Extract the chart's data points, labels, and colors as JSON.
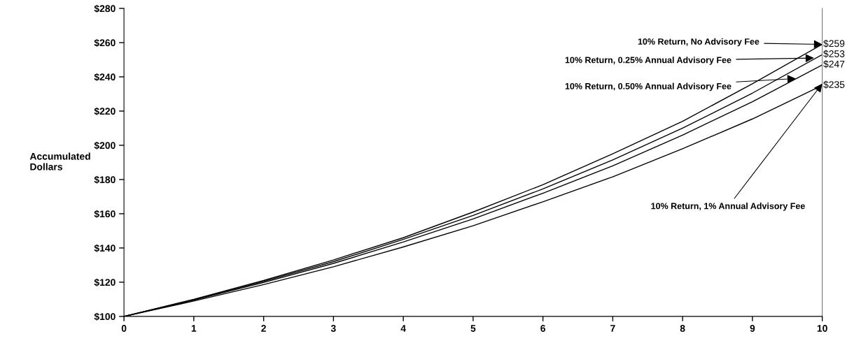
{
  "chart_data": {
    "type": "line",
    "ylabel": "Accumulated\nDollars",
    "x": [
      0,
      1,
      2,
      3,
      4,
      5,
      6,
      7,
      8,
      9,
      10
    ],
    "series": [
      {
        "color": "#000000",
        "values": [
          100,
          110,
          121,
          133,
          146,
          161,
          177,
          195,
          214,
          236,
          259
        ],
        "value_labels": [
          null,
          null,
          null,
          null,
          null,
          null,
          null,
          null,
          null,
          null,
          "$259"
        ]
      },
      {
        "color": "#000000",
        "values": [
          100,
          109.7,
          120.4,
          132,
          145,
          159,
          174.5,
          191.5,
          210,
          230.5,
          253
        ],
        "value_labels": [
          null,
          null,
          null,
          null,
          null,
          null,
          null,
          null,
          null,
          null,
          "$253"
        ]
      },
      {
        "color": "#000000",
        "values": [
          100,
          109.5,
          119.8,
          131,
          143.5,
          157,
          172,
          188,
          206,
          225.5,
          247
        ],
        "value_labels": [
          null,
          null,
          null,
          null,
          null,
          null,
          null,
          null,
          null,
          null,
          "$247"
        ]
      },
      {
        "color": "#000000",
        "values": [
          100,
          109,
          118.6,
          129,
          140.6,
          153,
          167,
          181.6,
          198,
          215.4,
          235
        ],
        "value_labels": [
          null,
          null,
          null,
          null,
          null,
          null,
          null,
          null,
          null,
          null,
          "$235"
        ]
      }
    ],
    "annotations": [
      {
        "text": "10% Return, No Advisory Fee",
        "x": 10,
        "y": 259
      },
      {
        "text": "10% Return, 0.25% Annual Advisory Fee",
        "x": 9.88,
        "y": 251
      },
      {
        "text": "10% Return, 0.50% Annual Advisory Fee",
        "x": 9.62,
        "y": 239
      },
      {
        "text": "10% Return, 1% Annual Advisory Fee",
        "x": 10,
        "y": 236
      }
    ],
    "xlim": [
      0,
      10
    ],
    "xticks": [
      0,
      1,
      2,
      3,
      4,
      5,
      6,
      7,
      8,
      9,
      10
    ],
    "ylim": [
      100,
      280
    ],
    "yticks": [
      {
        "value": 100,
        "label": "$100"
      },
      {
        "value": 120,
        "label": "$120"
      },
      {
        "value": 140,
        "label": "$140"
      },
      {
        "value": 160,
        "label": "$160"
      },
      {
        "value": 180,
        "label": "$180"
      },
      {
        "value": 200,
        "label": "$200"
      },
      {
        "value": 220,
        "label": "$220"
      },
      {
        "value": 240,
        "label": "$240"
      },
      {
        "value": 260,
        "label": "$260"
      },
      {
        "value": 280,
        "label": "$280"
      }
    ],
    "grid": false,
    "legend": false,
    "marker": "none",
    "line_style": "solid"
  }
}
